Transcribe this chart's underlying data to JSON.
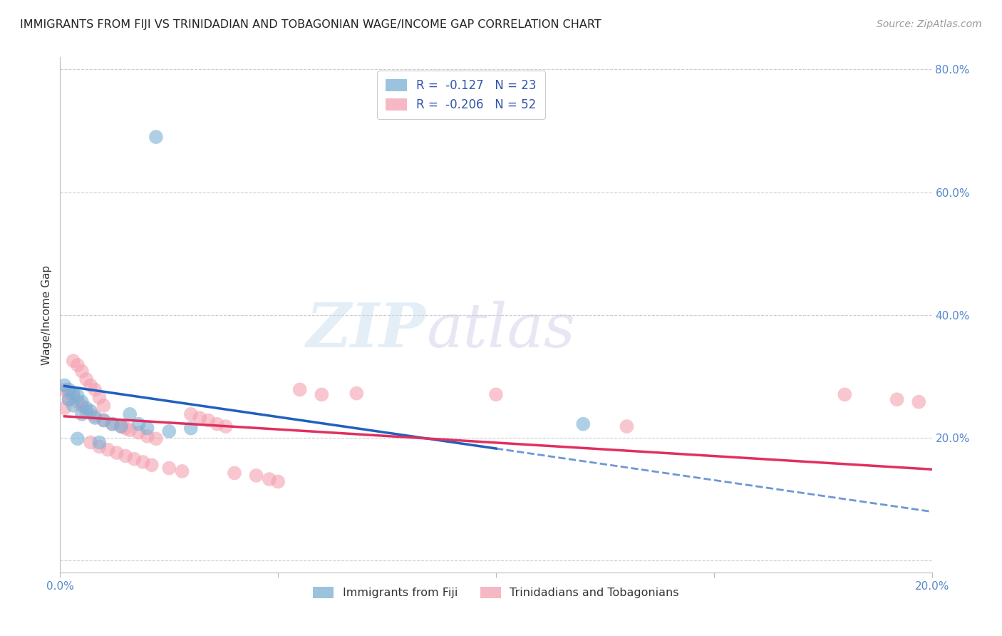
{
  "title": "IMMIGRANTS FROM FIJI VS TRINIDADIAN AND TOBAGONIAN WAGE/INCOME GAP CORRELATION CHART",
  "source": "Source: ZipAtlas.com",
  "ylabel": "Wage/Income Gap",
  "xlim": [
    0.0,
    0.2
  ],
  "ylim": [
    -0.02,
    0.82
  ],
  "xticks": [
    0.0,
    0.05,
    0.1,
    0.15,
    0.2
  ],
  "xtick_labels": [
    "0.0%",
    "",
    "",
    "",
    "20.0%"
  ],
  "yticks_right": [
    0.0,
    0.2,
    0.4,
    0.6,
    0.8
  ],
  "ytick_right_labels": [
    "",
    "20.0%",
    "40.0%",
    "60.0%",
    "80.0%"
  ],
  "fiji_R": "-0.127",
  "fiji_N": "23",
  "tt_R": "-0.206",
  "tt_N": "52",
  "fiji_color": "#7bafd4",
  "tt_color": "#f4a0b0",
  "fiji_trend_color": "#2060c0",
  "tt_trend_color": "#e03060",
  "fiji_scatter": [
    [
      0.001,
      0.285
    ],
    [
      0.002,
      0.278
    ],
    [
      0.003,
      0.272
    ],
    [
      0.004,
      0.268
    ],
    [
      0.002,
      0.262
    ],
    [
      0.005,
      0.258
    ],
    [
      0.003,
      0.252
    ],
    [
      0.006,
      0.248
    ],
    [
      0.007,
      0.243
    ],
    [
      0.005,
      0.238
    ],
    [
      0.008,
      0.232
    ],
    [
      0.01,
      0.228
    ],
    [
      0.012,
      0.222
    ],
    [
      0.014,
      0.218
    ],
    [
      0.016,
      0.238
    ],
    [
      0.018,
      0.222
    ],
    [
      0.02,
      0.215
    ],
    [
      0.025,
      0.21
    ],
    [
      0.004,
      0.198
    ],
    [
      0.009,
      0.192
    ],
    [
      0.03,
      0.215
    ],
    [
      0.022,
      0.69
    ],
    [
      0.12,
      0.222
    ]
  ],
  "tt_scatter": [
    [
      0.001,
      0.278
    ],
    [
      0.002,
      0.272
    ],
    [
      0.003,
      0.268
    ],
    [
      0.002,
      0.262
    ],
    [
      0.004,
      0.258
    ],
    [
      0.005,
      0.252
    ],
    [
      0.001,
      0.248
    ],
    [
      0.003,
      0.325
    ],
    [
      0.004,
      0.318
    ],
    [
      0.005,
      0.308
    ],
    [
      0.006,
      0.295
    ],
    [
      0.007,
      0.285
    ],
    [
      0.008,
      0.278
    ],
    [
      0.009,
      0.265
    ],
    [
      0.01,
      0.252
    ],
    [
      0.006,
      0.242
    ],
    [
      0.008,
      0.235
    ],
    [
      0.01,
      0.228
    ],
    [
      0.012,
      0.222
    ],
    [
      0.014,
      0.218
    ],
    [
      0.015,
      0.215
    ],
    [
      0.016,
      0.212
    ],
    [
      0.018,
      0.208
    ],
    [
      0.02,
      0.202
    ],
    [
      0.022,
      0.198
    ],
    [
      0.007,
      0.192
    ],
    [
      0.009,
      0.185
    ],
    [
      0.011,
      0.18
    ],
    [
      0.013,
      0.175
    ],
    [
      0.015,
      0.17
    ],
    [
      0.017,
      0.165
    ],
    [
      0.019,
      0.16
    ],
    [
      0.021,
      0.155
    ],
    [
      0.025,
      0.15
    ],
    [
      0.028,
      0.145
    ],
    [
      0.03,
      0.238
    ],
    [
      0.032,
      0.232
    ],
    [
      0.034,
      0.228
    ],
    [
      0.036,
      0.222
    ],
    [
      0.038,
      0.218
    ],
    [
      0.04,
      0.142
    ],
    [
      0.045,
      0.138
    ],
    [
      0.048,
      0.132
    ],
    [
      0.05,
      0.128
    ],
    [
      0.06,
      0.27
    ],
    [
      0.068,
      0.272
    ],
    [
      0.1,
      0.27
    ],
    [
      0.13,
      0.218
    ],
    [
      0.055,
      0.278
    ],
    [
      0.18,
      0.27
    ],
    [
      0.192,
      0.262
    ],
    [
      0.197,
      0.258
    ]
  ],
  "background_color": "#ffffff",
  "grid_color": "#cccccc",
  "watermark_zip": "ZIP",
  "watermark_atlas": "atlas",
  "legend_label_fiji": "Immigrants from Fiji",
  "legend_label_tt": "Trinidadians and Tobagonians"
}
